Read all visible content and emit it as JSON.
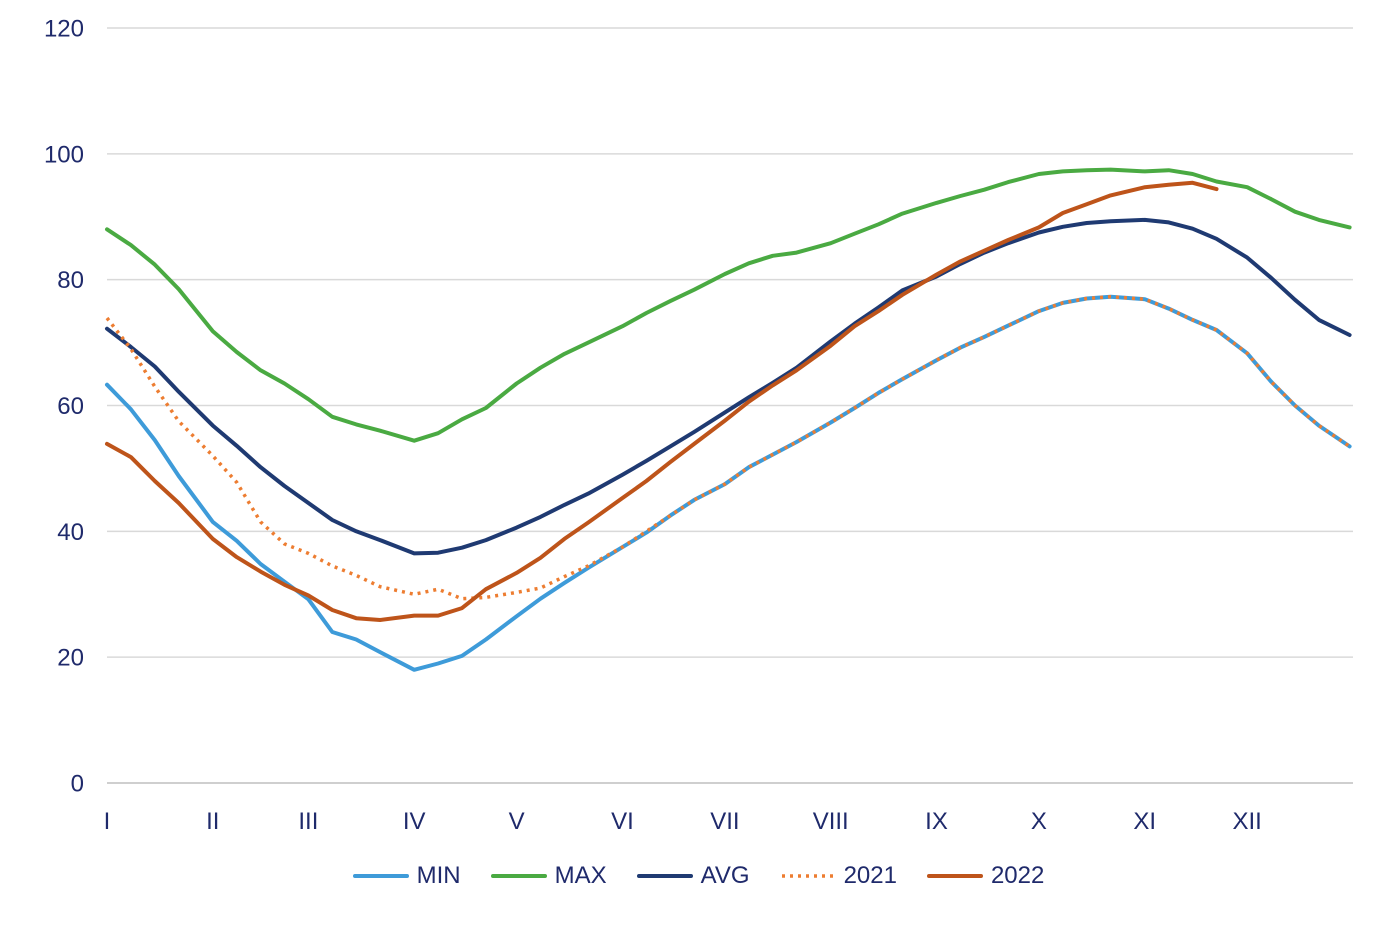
{
  "chart_data": {
    "type": "line",
    "x": [
      "01-01",
      "01-08",
      "01-15",
      "01-22",
      "02-01",
      "02-08",
      "02-15",
      "02-22",
      "03-01",
      "03-08",
      "03-15",
      "03-22",
      "04-01",
      "04-08",
      "04-15",
      "04-22",
      "05-01",
      "05-08",
      "05-15",
      "05-22",
      "06-01",
      "06-08",
      "06-15",
      "06-22",
      "07-01",
      "07-08",
      "07-15",
      "07-22",
      "08-01",
      "08-08",
      "08-15",
      "08-22",
      "09-01",
      "09-08",
      "09-15",
      "09-22",
      "10-01",
      "10-08",
      "10-15",
      "10-22",
      "11-01",
      "11-08",
      "11-15",
      "11-22",
      "12-01",
      "12-08",
      "12-15",
      "12-22",
      "12-31"
    ],
    "x_tick_labels": [
      "I",
      "II",
      "III",
      "IV",
      "V",
      "VI",
      "VII",
      "VIII",
      "IX",
      "X",
      "XI",
      "XII"
    ],
    "yticks": [
      0,
      20,
      40,
      60,
      80,
      100,
      120
    ],
    "ylim": [
      0,
      120
    ],
    "grid": "horizontal",
    "legend": "bottom-center",
    "text_color": "#1F2A6B",
    "series": [
      {
        "name": "MIN",
        "color": "#3E9BD9",
        "style": "solid",
        "values": [
          63.3,
          59.4,
          54.5,
          48.8,
          41.5,
          38.5,
          34.8,
          32.0,
          29.2,
          24.0,
          22.8,
          20.8,
          18.0,
          19.0,
          20.2,
          22.8,
          26.5,
          29.3,
          31.8,
          34.2,
          37.5,
          39.8,
          42.5,
          45.0,
          47.5,
          50.2,
          52.2,
          54.2,
          57.3,
          59.6,
          62.0,
          64.2,
          67.2,
          69.2,
          70.9,
          72.7,
          75.0,
          76.3,
          77.0,
          77.3,
          76.9,
          75.4,
          73.6,
          72.0,
          68.3,
          63.8,
          60.0,
          56.8,
          53.5
        ]
      },
      {
        "name": "MAX",
        "color": "#4AAA42",
        "style": "solid",
        "values": [
          88.0,
          85.5,
          82.4,
          78.5,
          71.8,
          68.5,
          65.6,
          63.5,
          61.0,
          58.2,
          57.0,
          56.0,
          54.4,
          55.6,
          57.8,
          59.6,
          63.5,
          66.0,
          68.2,
          70.0,
          72.6,
          74.7,
          76.6,
          78.4,
          80.9,
          82.6,
          83.8,
          84.3,
          85.8,
          87.3,
          88.8,
          90.5,
          92.2,
          93.3,
          94.3,
          95.5,
          96.8,
          97.2,
          97.4,
          97.5,
          97.2,
          97.4,
          96.8,
          95.6,
          94.7,
          92.8,
          90.8,
          89.5,
          88.3
        ]
      },
      {
        "name": "AVG",
        "color": "#1F3A72",
        "style": "solid",
        "values": [
          72.2,
          69.3,
          66.2,
          62.2,
          56.8,
          53.6,
          50.2,
          47.2,
          44.5,
          41.8,
          40.0,
          38.6,
          36.5,
          36.6,
          37.4,
          38.6,
          40.6,
          42.3,
          44.2,
          46.0,
          49.0,
          51.2,
          53.5,
          55.8,
          58.9,
          61.3,
          63.6,
          66.0,
          70.2,
          73.0,
          75.6,
          78.3,
          80.5,
          82.5,
          84.3,
          85.8,
          87.5,
          88.4,
          89.0,
          89.3,
          89.5,
          89.1,
          88.1,
          86.5,
          83.5,
          80.3,
          76.8,
          73.6,
          71.2
        ]
      },
      {
        "name": "2021",
        "color": "#ED7D31",
        "style": "dotted",
        "values": [
          73.9,
          69.0,
          63.0,
          57.5,
          52.0,
          47.8,
          41.5,
          38.0,
          36.5,
          34.5,
          33.0,
          31.2,
          30.0,
          30.8,
          29.3,
          29.5,
          30.3,
          31.0,
          32.8,
          34.5,
          37.5,
          40.0,
          42.5,
          45.0,
          47.5,
          50.2,
          52.2,
          54.2,
          57.3,
          59.6,
          62.0,
          64.2,
          67.2,
          69.2,
          70.9,
          72.7,
          75.0,
          76.3,
          77.0,
          77.3,
          76.9,
          75.4,
          73.6,
          72.0,
          68.3,
          63.8,
          60.0,
          56.8,
          53.5
        ]
      },
      {
        "name": "2022",
        "color": "#BE541A",
        "style": "solid",
        "values": [
          53.9,
          51.8,
          48.0,
          44.5,
          38.8,
          35.9,
          33.6,
          31.5,
          29.8,
          27.5,
          26.2,
          25.9,
          26.6,
          26.6,
          27.8,
          30.8,
          33.4,
          35.8,
          38.8,
          41.4,
          45.3,
          48.0,
          51.0,
          53.9,
          57.6,
          60.6,
          63.2,
          65.6,
          69.5,
          72.6,
          75.0,
          77.6,
          80.8,
          82.9,
          84.6,
          86.3,
          88.3,
          90.6,
          92.0,
          93.4,
          94.7,
          95.1,
          95.4,
          94.4,
          null,
          null,
          null,
          null,
          null
        ]
      }
    ]
  }
}
